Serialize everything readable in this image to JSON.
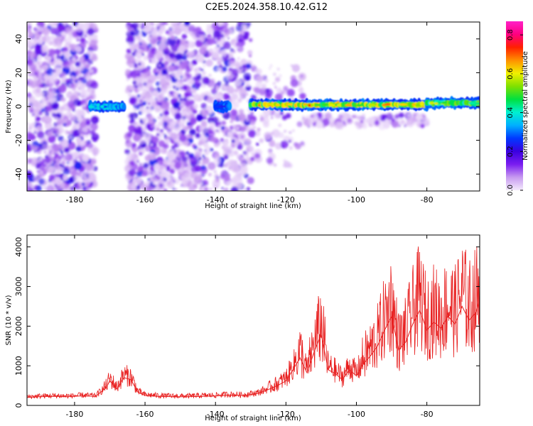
{
  "figure": {
    "title": "C2E5.2024.358.10.42.G12"
  },
  "chart_data": [
    {
      "type": "heatmap",
      "xlabel": "Height of straight line (km)",
      "ylabel": "Frequency (Hz)",
      "xlim": [
        -193.5,
        -65
      ],
      "ylim": [
        -50,
        50
      ],
      "x_ticks": [
        -180,
        -160,
        -140,
        -120,
        -100,
        -80
      ],
      "x_tick_labels": [
        "-180",
        "-160",
        "-140",
        "-120",
        "-100",
        "-80"
      ],
      "y_ticks": [
        -40,
        -20,
        0,
        20,
        40
      ],
      "y_tick_labels": [
        "-40",
        "-20",
        "0",
        "20",
        "40"
      ],
      "colorbar": {
        "label": "Normalized spectral amplitude",
        "range": [
          0,
          0.87
        ],
        "ticks": [
          0,
          0.2,
          0.4,
          0.6,
          0.8
        ],
        "tick_labels": [
          "0.0",
          "0.2",
          "0.4",
          "0.6",
          "0.8"
        ],
        "colormap": [
          "#f4eafc",
          "#c79af0",
          "#7a1df0",
          "#3a00e0",
          "#0038ff",
          "#00b0ff",
          "#00f0d0",
          "#00e040",
          "#80e000",
          "#f0f000",
          "#ff9000",
          "#ff2000",
          "#ff0080",
          "#ff20c8"
        ]
      },
      "noise_regions": [
        {
          "x": [
            -193.5,
            -174
          ],
          "y": [
            -50,
            50
          ],
          "density": "high"
        },
        {
          "x": [
            -165,
            -147
          ],
          "y": [
            -50,
            50
          ],
          "density": "high"
        },
        {
          "x": [
            -147,
            -130
          ],
          "y": [
            -50,
            50
          ],
          "density": "medium"
        },
        {
          "x": [
            -130,
            -115
          ],
          "y": [
            -35,
            25
          ],
          "density": "low"
        },
        {
          "x": [
            -115,
            -80
          ],
          "y": [
            -12,
            -5
          ],
          "density": "low"
        }
      ],
      "signal_band": {
        "segments": [
          {
            "x": [
              -175.5,
              -166
            ],
            "freq": 0,
            "peak": 0.45
          },
          {
            "x": [
              -140,
              -136
            ],
            "freq": 0,
            "peak": 0.35
          },
          {
            "x": [
              -130,
              -80
            ],
            "freq": 1,
            "peak": 0.85
          },
          {
            "x": [
              -80,
              -65
            ],
            "freq": 2,
            "peak": 0.7
          }
        ]
      }
    },
    {
      "type": "line",
      "xlabel": "Height of straight line (km)",
      "ylabel": "SNR (10 * v/v)",
      "xlim": [
        -193.5,
        -65
      ],
      "ylim": [
        0,
        4300
      ],
      "x_ticks": [
        -180,
        -160,
        -140,
        -120,
        -100,
        -80
      ],
      "x_tick_labels": [
        "-180",
        "-160",
        "-140",
        "-120",
        "-100",
        "-80"
      ],
      "y_ticks": [
        0,
        1000,
        2000,
        3000,
        4000
      ],
      "y_tick_labels": [
        "0",
        "1000",
        "2000",
        "3000",
        "4000"
      ],
      "line_color": "#e82020",
      "series": [
        {
          "x": [
            -193.5,
            -190,
            -186,
            -182,
            -178,
            -174,
            -171,
            -170,
            -168,
            -166,
            -164,
            -162,
            -160,
            -156,
            -152,
            -148,
            -144,
            -140,
            -136,
            -132,
            -128,
            -125,
            -122,
            -120,
            -118,
            -116,
            -114,
            -112,
            -110,
            -108,
            -106,
            -104,
            -102,
            -100,
            -98,
            -96,
            -94,
            -92,
            -90,
            -88,
            -86,
            -84,
            -82,
            -80,
            -78,
            -76,
            -74,
            -72,
            -70,
            -68,
            -66,
            -65
          ],
          "values": [
            200,
            220,
            230,
            220,
            240,
            230,
            450,
            620,
            420,
            700,
            650,
            330,
            250,
            230,
            220,
            220,
            230,
            240,
            260,
            250,
            300,
            400,
            520,
            620,
            900,
            1200,
            820,
            1350,
            1800,
            900,
            800,
            650,
            900,
            750,
            1050,
            1250,
            1500,
            1900,
            2250,
            1400,
            1600,
            2050,
            2400,
            1900,
            2100,
            1950,
            2250,
            2050,
            2500,
            2150,
            2350,
            2700
          ]
        }
      ]
    }
  ]
}
